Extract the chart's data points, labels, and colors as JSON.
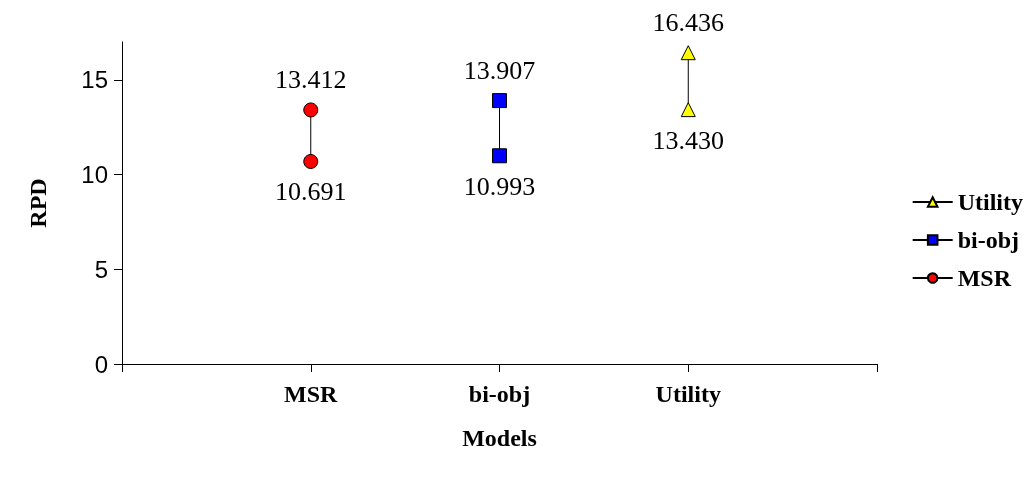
{
  "chart_data": {
    "type": "line",
    "xlabel": "Models",
    "ylabel": "RPD",
    "categories": [
      null,
      "MSR",
      "bi-obj",
      "Utility",
      null
    ],
    "ylim": [
      0,
      17
    ],
    "yticks": [
      0,
      5,
      10,
      15
    ],
    "grid": false,
    "legend": "right",
    "series": [
      {
        "name": "Utility",
        "color": "#ffff00",
        "marker": "triangle",
        "x": [
          "Utility",
          "Utility"
        ],
        "values": [
          13.43,
          16.436
        ],
        "value_labels": [
          "13.430",
          "16.436"
        ]
      },
      {
        "name": "bi-obj",
        "color": "#0000ff",
        "marker": "square",
        "x": [
          "bi-obj",
          "bi-obj"
        ],
        "values": [
          10.993,
          13.907
        ],
        "value_labels": [
          "10.993",
          "13.907"
        ]
      },
      {
        "name": "MSR",
        "color": "#ff0000",
        "marker": "circle",
        "x": [
          "MSR",
          "MSR"
        ],
        "values": [
          10.691,
          13.412
        ],
        "value_labels": [
          "10.691",
          "13.412"
        ]
      }
    ]
  }
}
